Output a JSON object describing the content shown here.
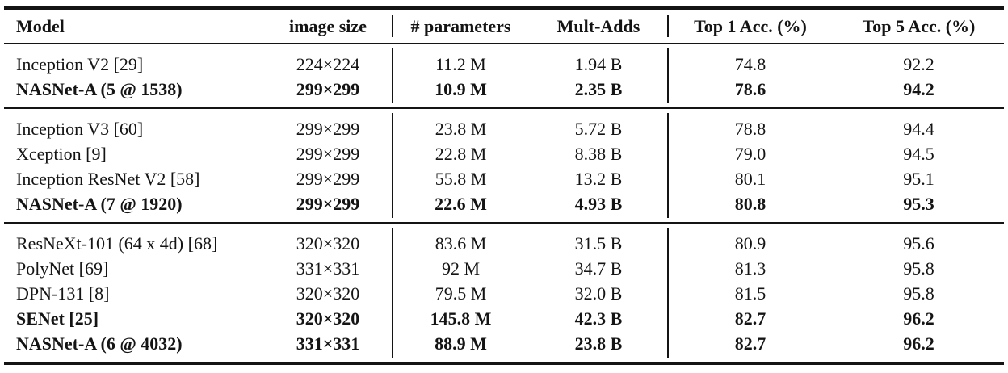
{
  "colors": {
    "background": "#ffffff",
    "text": "#141414",
    "rule": "#141414"
  },
  "table": {
    "columns": [
      {
        "label": "Model"
      },
      {
        "label": "image size"
      },
      {
        "label": "# parameters"
      },
      {
        "label": "Mult-Adds"
      },
      {
        "label": "Top 1 Acc. (%)"
      },
      {
        "label": "Top 5 Acc. (%)"
      }
    ],
    "sections": [
      {
        "rows": [
          {
            "model": "Inception V2 [29]",
            "image_size": "224×224",
            "parameters": "11.2 M",
            "mult_adds": "1.94 B",
            "top1": "74.8",
            "top5": "92.2",
            "bold": false
          },
          {
            "model": "NASNet-A (5 @ 1538)",
            "image_size": "299×299",
            "parameters": "10.9 M",
            "mult_adds": "2.35 B",
            "top1": "78.6",
            "top5": "94.2",
            "bold": true
          }
        ]
      },
      {
        "rows": [
          {
            "model": "Inception V3 [60]",
            "image_size": "299×299",
            "parameters": "23.8 M",
            "mult_adds": "5.72 B",
            "top1": "78.8",
            "top5": "94.4",
            "bold": false
          },
          {
            "model": "Xception [9]",
            "image_size": "299×299",
            "parameters": "22.8 M",
            "mult_adds": "8.38 B",
            "top1": "79.0",
            "top5": "94.5",
            "bold": false
          },
          {
            "model": "Inception ResNet V2 [58]",
            "image_size": "299×299",
            "parameters": "55.8 M",
            "mult_adds": "13.2 B",
            "top1": "80.1",
            "top5": "95.1",
            "bold": false
          },
          {
            "model": "NASNet-A (7 @ 1920)",
            "image_size": "299×299",
            "parameters": "22.6 M",
            "mult_adds": "4.93 B",
            "top1": "80.8",
            "top5": "95.3",
            "bold": true
          }
        ]
      },
      {
        "rows": [
          {
            "model": "ResNeXt-101 (64 x 4d) [68]",
            "image_size": "320×320",
            "parameters": "83.6 M",
            "mult_adds": "31.5 B",
            "top1": "80.9",
            "top5": "95.6",
            "bold": false
          },
          {
            "model": "PolyNet [69]",
            "image_size": "331×331",
            "parameters": "92 M",
            "mult_adds": "34.7 B",
            "top1": "81.3",
            "top5": "95.8",
            "bold": false
          },
          {
            "model": "DPN-131 [8]",
            "image_size": "320×320",
            "parameters": "79.5 M",
            "mult_adds": "32.0 B",
            "top1": "81.5",
            "top5": "95.8",
            "bold": false
          },
          {
            "model": "SENet [25]",
            "image_size": "320×320",
            "parameters": "145.8 M",
            "mult_adds": "42.3 B",
            "top1": "82.7",
            "top5": "96.2",
            "bold": true
          },
          {
            "model": "NASNet-A (6 @ 4032)",
            "image_size": "331×331",
            "parameters": "88.9 M",
            "mult_adds": "23.8 B",
            "top1": "82.7",
            "top5": "96.2",
            "bold": true
          }
        ]
      }
    ]
  }
}
